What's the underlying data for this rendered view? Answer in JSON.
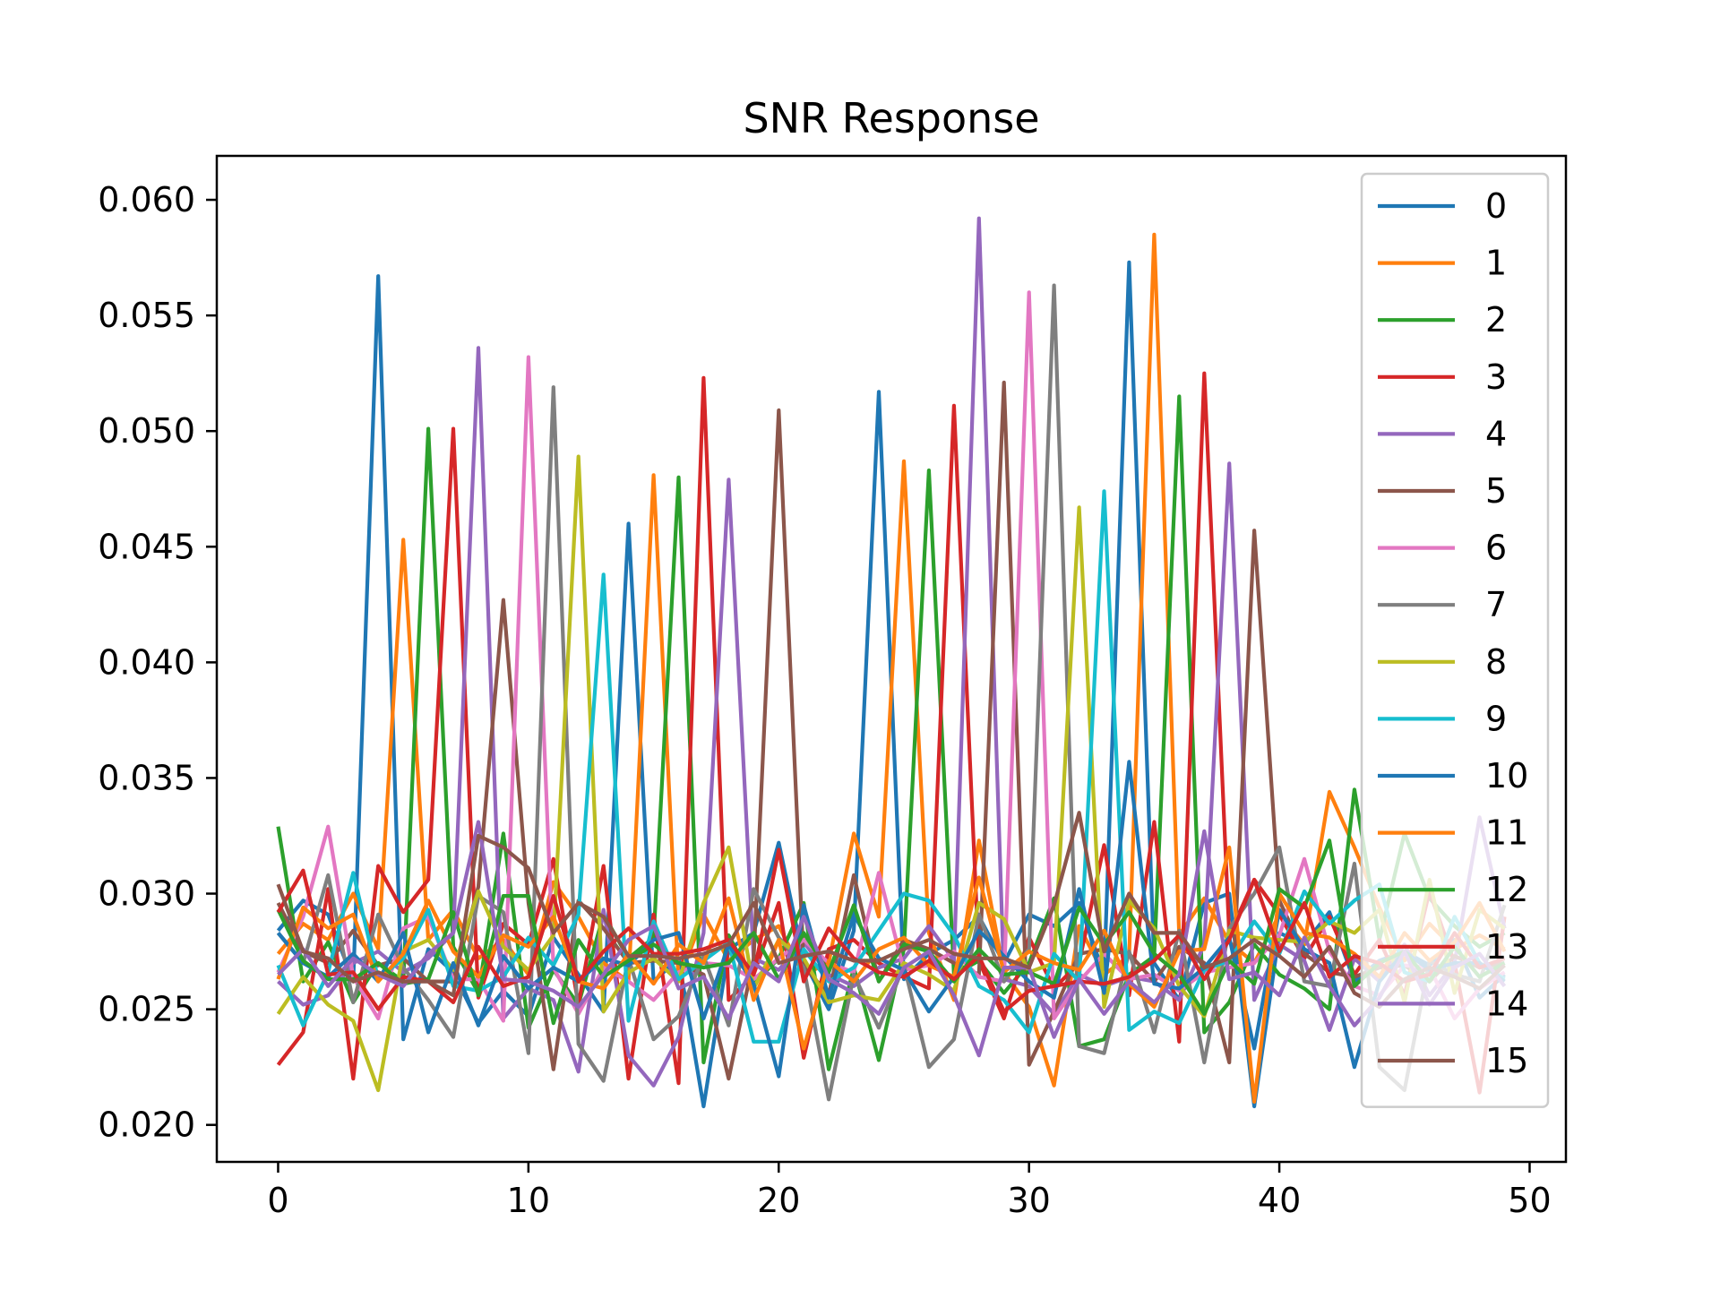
{
  "chart_data": {
    "type": "line",
    "title": "SNR Response",
    "xlabel": "",
    "ylabel": "",
    "xlim": [
      -2.45,
      51.45
    ],
    "ylim": [
      0.0184,
      0.0619
    ],
    "grid": false,
    "legend_position": "upper right",
    "x_ticks": [
      0,
      10,
      20,
      30,
      40,
      50
    ],
    "x_tick_labels": [
      "0",
      "10",
      "20",
      "30",
      "40",
      "50"
    ],
    "y_ticks": [
      0.02,
      0.025,
      0.03,
      0.035,
      0.04,
      0.045,
      0.05,
      0.055,
      0.06
    ],
    "y_tick_labels": [
      "0.020",
      "0.025",
      "0.030",
      "0.035",
      "0.040",
      "0.045",
      "0.050",
      "0.055",
      "0.060"
    ],
    "x": [
      0,
      1,
      2,
      3,
      4,
      5,
      6,
      7,
      8,
      9,
      10,
      11,
      12,
      13,
      14,
      15,
      16,
      17,
      18,
      19,
      20,
      21,
      22,
      23,
      24,
      25,
      26,
      27,
      28,
      29,
      30,
      31,
      32,
      33,
      34,
      35,
      36,
      37,
      38,
      39,
      40,
      41,
      42,
      43,
      44,
      45,
      46,
      47,
      48,
      49
    ],
    "series": [
      {
        "name": "0",
        "color": "#1f77b4",
        "values": [
          0.0284,
          0.0297,
          0.0291,
          0.0262,
          0.0567,
          0.0237,
          0.0276,
          0.0266,
          0.0244,
          0.0258,
          0.0247,
          0.0281,
          0.0265,
          0.0249,
          0.046,
          0.0262,
          0.0272,
          0.0208,
          0.0276,
          0.0283,
          0.0322,
          0.0271,
          0.025,
          0.0284,
          0.0517,
          0.0263,
          0.0274,
          0.028,
          0.029,
          0.027,
          0.0291,
          0.0286,
          0.0296,
          0.0265,
          0.0573,
          0.027,
          0.0254,
          0.0296,
          0.03,
          0.0208,
          0.0283,
          0.0278,
          0.0292,
          0.0262,
          0.0271,
          0.0275,
          0.0269,
          0.028,
          0.0255,
          0.0265
        ]
      },
      {
        "name": "1",
        "color": "#ff7f0e",
        "values": [
          0.0274,
          0.0287,
          0.028,
          0.03,
          0.0276,
          0.0453,
          0.028,
          0.0293,
          0.0272,
          0.028,
          0.0265,
          0.0305,
          0.029,
          0.027,
          0.0262,
          0.0481,
          0.0262,
          0.0291,
          0.0271,
          0.028,
          0.0286,
          0.0265,
          0.027,
          0.0326,
          0.029,
          0.0487,
          0.0283,
          0.0254,
          0.0323,
          0.0266,
          0.0251,
          0.0217,
          0.0286,
          0.0265,
          0.0273,
          0.0585,
          0.0282,
          0.0298,
          0.0279,
          0.027,
          0.0291,
          0.0278,
          0.0344,
          0.032,
          0.0294,
          0.0271,
          0.0287,
          0.0276,
          0.0282,
          0.0276
        ]
      },
      {
        "name": "2",
        "color": "#2ca02c",
        "values": [
          0.0329,
          0.0262,
          0.0279,
          0.0253,
          0.027,
          0.0262,
          0.0501,
          0.0277,
          0.0257,
          0.0326,
          0.0242,
          0.0267,
          0.0252,
          0.0291,
          0.0272,
          0.0281,
          0.048,
          0.0227,
          0.0282,
          0.0261,
          0.0272,
          0.0296,
          0.0224,
          0.0268,
          0.0228,
          0.0276,
          0.0483,
          0.0265,
          0.0271,
          0.0257,
          0.027,
          0.0298,
          0.0234,
          0.0237,
          0.0265,
          0.0273,
          0.0515,
          0.024,
          0.0253,
          0.0278,
          0.0265,
          0.0259,
          0.025,
          0.0345,
          0.028,
          0.0326,
          0.0298,
          0.0286,
          0.0277,
          0.0283
        ]
      },
      {
        "name": "3",
        "color": "#d62728",
        "values": [
          0.0226,
          0.024,
          0.0302,
          0.022,
          0.0312,
          0.0292,
          0.0306,
          0.0501,
          0.0255,
          0.0287,
          0.0278,
          0.0315,
          0.0252,
          0.0312,
          0.022,
          0.0291,
          0.0218,
          0.0523,
          0.0254,
          0.0265,
          0.0296,
          0.0229,
          0.0276,
          0.028,
          0.027,
          0.0264,
          0.0259,
          0.0511,
          0.0271,
          0.0246,
          0.0281,
          0.0259,
          0.027,
          0.0321,
          0.0256,
          0.0331,
          0.0236,
          0.0525,
          0.0282,
          0.0306,
          0.0291,
          0.0272,
          0.029,
          0.0265,
          0.028,
          0.0256,
          0.0301,
          0.027,
          0.0214,
          0.029
        ]
      },
      {
        "name": "4",
        "color": "#9467bd",
        "values": [
          0.0262,
          0.0252,
          0.0256,
          0.027,
          0.0275,
          0.0266,
          0.0272,
          0.0283,
          0.0536,
          0.0246,
          0.0259,
          0.0254,
          0.0223,
          0.0293,
          0.023,
          0.0217,
          0.0238,
          0.0283,
          0.0479,
          0.0272,
          0.0267,
          0.0279,
          0.0265,
          0.026,
          0.0268,
          0.0272,
          0.0286,
          0.0271,
          0.0592,
          0.0263,
          0.026,
          0.0248,
          0.0265,
          0.026,
          0.0264,
          0.0262,
          0.0254,
          0.0278,
          0.0486,
          0.0254,
          0.0278,
          0.0271,
          0.0241,
          0.0272,
          0.0262,
          0.0278,
          0.0256,
          0.027,
          0.0333,
          0.0285
        ]
      },
      {
        "name": "5",
        "color": "#8c564b",
        "values": [
          0.0296,
          0.0275,
          0.027,
          0.0284,
          0.0269,
          0.0272,
          0.0262,
          0.0262,
          0.0303,
          0.0427,
          0.0296,
          0.0224,
          0.0297,
          0.0285,
          0.027,
          0.0271,
          0.027,
          0.0265,
          0.022,
          0.0272,
          0.0509,
          0.0269,
          0.0256,
          0.0308,
          0.0262,
          0.028,
          0.0276,
          0.027,
          0.0265,
          0.0521,
          0.0226,
          0.0249,
          0.0274,
          0.0276,
          0.0274,
          0.0262,
          0.0277,
          0.027,
          0.0227,
          0.0457,
          0.0297,
          0.0274,
          0.0266,
          0.0264,
          0.0268,
          0.0269,
          0.0262,
          0.0273,
          0.0268,
          0.027
        ]
      },
      {
        "name": "6",
        "color": "#e377c2",
        "values": [
          0.0266,
          0.029,
          0.0329,
          0.0264,
          0.0246,
          0.0285,
          0.029,
          0.0263,
          0.0263,
          0.0245,
          0.0532,
          0.0268,
          0.0248,
          0.0268,
          0.0262,
          0.0254,
          0.0266,
          0.027,
          0.0269,
          0.0263,
          0.0272,
          0.028,
          0.027,
          0.0266,
          0.0309,
          0.0267,
          0.0269,
          0.0275,
          0.0264,
          0.0262,
          0.056,
          0.0246,
          0.0262,
          0.0274,
          0.0263,
          0.0265,
          0.0258,
          0.0266,
          0.0268,
          0.027,
          0.0282,
          0.0315,
          0.0275,
          0.026,
          0.0256,
          0.0269,
          0.0268,
          0.0246,
          0.0259,
          0.0266
        ]
      },
      {
        "name": "7",
        "color": "#7f7f7f",
        "values": [
          0.0283,
          0.027,
          0.0308,
          0.0253,
          0.0291,
          0.0268,
          0.0254,
          0.0238,
          0.0299,
          0.0292,
          0.0231,
          0.0519,
          0.0235,
          0.0219,
          0.0272,
          0.0237,
          0.0247,
          0.0273,
          0.0243,
          0.0302,
          0.0281,
          0.0268,
          0.0211,
          0.0265,
          0.0242,
          0.0269,
          0.0225,
          0.0237,
          0.0291,
          0.0262,
          0.0276,
          0.0563,
          0.0234,
          0.0231,
          0.0275,
          0.024,
          0.0284,
          0.0227,
          0.0285,
          0.03,
          0.032,
          0.0262,
          0.026,
          0.0313,
          0.0225,
          0.0215,
          0.0271,
          0.0265,
          0.0262,
          0.0295
        ]
      },
      {
        "name": "8",
        "color": "#bcbd22",
        "values": [
          0.0248,
          0.0264,
          0.0252,
          0.0245,
          0.0215,
          0.0275,
          0.028,
          0.0267,
          0.0301,
          0.0277,
          0.0267,
          0.0282,
          0.0489,
          0.0249,
          0.0266,
          0.0272,
          0.0262,
          0.0296,
          0.032,
          0.0259,
          0.028,
          0.0272,
          0.0253,
          0.0256,
          0.0254,
          0.027,
          0.0265,
          0.0258,
          0.0296,
          0.0289,
          0.0266,
          0.027,
          0.0467,
          0.0251,
          0.0297,
          0.0285,
          0.026,
          0.0247,
          0.0284,
          0.0281,
          0.028,
          0.0279,
          0.0288,
          0.0283,
          0.0293,
          0.0253,
          0.0306,
          0.0257,
          0.0293,
          0.0285
        ]
      },
      {
        "name": "9",
        "color": "#17becf",
        "values": [
          0.0269,
          0.0243,
          0.0266,
          0.0309,
          0.0263,
          0.0272,
          0.0293,
          0.026,
          0.0258,
          0.0264,
          0.0281,
          0.0269,
          0.0291,
          0.0438,
          0.0245,
          0.0288,
          0.0263,
          0.0271,
          0.0279,
          0.0236,
          0.0236,
          0.0276,
          0.0262,
          0.0268,
          0.0284,
          0.03,
          0.0297,
          0.0282,
          0.026,
          0.0254,
          0.024,
          0.0274,
          0.0262,
          0.0474,
          0.0241,
          0.0249,
          0.0244,
          0.0267,
          0.0271,
          0.0288,
          0.0274,
          0.0301,
          0.0287,
          0.0297,
          0.0304,
          0.0266,
          0.0262,
          0.029,
          0.027,
          0.0263
        ]
      },
      {
        "name": "10",
        "color": "#1f77b4",
        "values": [
          0.0283,
          0.027,
          0.0264,
          0.0274,
          0.0262,
          0.0283,
          0.024,
          0.027,
          0.0243,
          0.0273,
          0.0259,
          0.0268,
          0.0262,
          0.0272,
          0.0269,
          0.028,
          0.0283,
          0.0246,
          0.0278,
          0.0261,
          0.0221,
          0.0295,
          0.0255,
          0.0291,
          0.0272,
          0.0267,
          0.0249,
          0.0264,
          0.0284,
          0.0273,
          0.0262,
          0.0255,
          0.0302,
          0.0257,
          0.0357,
          0.0261,
          0.0259,
          0.0268,
          0.0281,
          0.0233,
          0.0293,
          0.0276,
          0.027,
          0.0225,
          0.0262,
          0.0275,
          0.0267,
          0.027,
          0.027,
          0.0262
        ]
      },
      {
        "name": "11",
        "color": "#ff7f0e",
        "values": [
          0.0263,
          0.0294,
          0.0285,
          0.0291,
          0.0262,
          0.0274,
          0.0297,
          0.0275,
          0.0264,
          0.0282,
          0.0277,
          0.029,
          0.0262,
          0.0259,
          0.0274,
          0.0261,
          0.0278,
          0.027,
          0.0298,
          0.0254,
          0.028,
          0.0233,
          0.0271,
          0.0262,
          0.0276,
          0.0281,
          0.0269,
          0.0264,
          0.0307,
          0.0266,
          0.0275,
          0.027,
          0.0267,
          0.0284,
          0.0261,
          0.0251,
          0.0275,
          0.0276,
          0.032,
          0.021,
          0.03,
          0.0283,
          0.0281,
          0.0274,
          0.0264,
          0.0283,
          0.0271,
          0.0279,
          0.0296,
          0.0275
        ]
      },
      {
        "name": "12",
        "color": "#2ca02c",
        "values": [
          0.0293,
          0.0271,
          0.0263,
          0.0263,
          0.027,
          0.0261,
          0.0263,
          0.0292,
          0.0256,
          0.0299,
          0.0299,
          0.0244,
          0.028,
          0.0264,
          0.0271,
          0.0278,
          0.027,
          0.0268,
          0.027,
          0.0283,
          0.0263,
          0.0283,
          0.0266,
          0.0295,
          0.0262,
          0.0278,
          0.0275,
          0.0262,
          0.0276,
          0.0265,
          0.0266,
          0.0261,
          0.0294,
          0.0278,
          0.0292,
          0.0274,
          0.0265,
          0.0248,
          0.0271,
          0.0261,
          0.0302,
          0.0294,
          0.0323,
          0.026,
          0.027,
          0.0275,
          0.0262,
          0.0277,
          0.0264,
          0.027
        ]
      },
      {
        "name": "13",
        "color": "#d62728",
        "values": [
          0.0292,
          0.031,
          0.0265,
          0.0266,
          0.025,
          0.0264,
          0.0262,
          0.0253,
          0.0277,
          0.026,
          0.0264,
          0.0299,
          0.0262,
          0.0275,
          0.0285,
          0.0274,
          0.0274,
          0.0276,
          0.028,
          0.0265,
          0.0319,
          0.0262,
          0.0285,
          0.0272,
          0.0266,
          0.0264,
          0.0271,
          0.0263,
          0.0273,
          0.0249,
          0.0258,
          0.026,
          0.0262,
          0.0261,
          0.0264,
          0.0271,
          0.0282,
          0.0263,
          0.028,
          0.0306,
          0.0275,
          0.0296,
          0.0264,
          0.0273,
          0.027,
          0.0262,
          0.0265,
          0.0283,
          0.0268,
          0.0272
        ]
      },
      {
        "name": "14",
        "color": "#9467bd",
        "values": [
          0.0265,
          0.0276,
          0.026,
          0.0272,
          0.0265,
          0.026,
          0.0274,
          0.0283,
          0.0331,
          0.0263,
          0.0262,
          0.0258,
          0.0251,
          0.0265,
          0.028,
          0.0286,
          0.0259,
          0.0264,
          0.0246,
          0.027,
          0.0262,
          0.029,
          0.0263,
          0.0257,
          0.0248,
          0.0268,
          0.0275,
          0.0256,
          0.023,
          0.0268,
          0.0268,
          0.0238,
          0.0263,
          0.0248,
          0.0262,
          0.0253,
          0.0265,
          0.0327,
          0.0263,
          0.0266,
          0.0256,
          0.0281,
          0.026,
          0.0243,
          0.0255,
          0.0275,
          0.0252,
          0.0268,
          0.0274,
          0.026
        ]
      },
      {
        "name": "15",
        "color": "#8c564b",
        "values": [
          0.0304,
          0.0275,
          0.0272,
          0.0262,
          0.0266,
          0.0262,
          0.0262,
          0.0256,
          0.0325,
          0.032,
          0.0311,
          0.0283,
          0.0296,
          0.029,
          0.0273,
          0.0273,
          0.0272,
          0.0274,
          0.0278,
          0.0296,
          0.027,
          0.0273,
          0.0275,
          0.0271,
          0.0271,
          0.0276,
          0.028,
          0.0274,
          0.0272,
          0.0272,
          0.0268,
          0.0295,
          0.0335,
          0.0275,
          0.03,
          0.0283,
          0.0283,
          0.0268,
          0.0272,
          0.028,
          0.0273,
          0.0264,
          0.0277,
          0.0257,
          0.0251,
          0.0263,
          0.0268,
          0.0264,
          0.0259,
          0.0269
        ]
      }
    ]
  }
}
